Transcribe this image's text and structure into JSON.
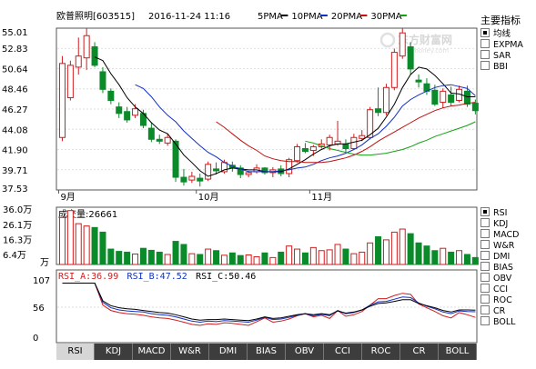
{
  "header": {
    "stock": "欧普照明[603515]",
    "datetime": "2016-11-24 11:16",
    "legend": [
      {
        "label": "5PMA",
        "color": "#000000"
      },
      {
        "label": "10PMA",
        "color": "#1030c0"
      },
      {
        "label": "20PMA",
        "color": "#c01010"
      },
      {
        "label": "30PMA",
        "color": "#16a016"
      }
    ]
  },
  "watermark": {
    "cn": "东方财富网",
    "en": "eastmoney.com"
  },
  "colors": {
    "up": "#d21c1c",
    "down": "#0b8a2a",
    "ma5": "#000000",
    "ma10": "#1030c0",
    "ma20": "#c01010",
    "ma30": "#16a016"
  },
  "main_indicators": {
    "title": "主要指标",
    "items": [
      {
        "label": "均线",
        "checked": true
      },
      {
        "label": "EXPMA",
        "checked": false
      },
      {
        "label": "SAR",
        "checked": false
      },
      {
        "label": "BBI",
        "checked": false
      }
    ]
  },
  "sub_indicators": {
    "items": [
      {
        "label": "RSI",
        "checked": true
      },
      {
        "label": "KDJ",
        "checked": false
      },
      {
        "label": "MACD",
        "checked": false
      },
      {
        "label": "W&R",
        "checked": false
      },
      {
        "label": "DMI",
        "checked": false
      },
      {
        "label": "BIAS",
        "checked": false
      },
      {
        "label": "OBV",
        "checked": false
      },
      {
        "label": "CCI",
        "checked": false
      },
      {
        "label": "ROC",
        "checked": false
      },
      {
        "label": "CR",
        "checked": false
      },
      {
        "label": "BOLL",
        "checked": false
      }
    ]
  },
  "tabs": [
    {
      "label": "RSI",
      "active": true
    },
    {
      "label": "KDJ",
      "active": false
    },
    {
      "label": "MACD",
      "active": false
    },
    {
      "label": "W&R",
      "active": false
    },
    {
      "label": "DMI",
      "active": false
    },
    {
      "label": "BIAS",
      "active": false
    },
    {
      "label": "OBV",
      "active": false
    },
    {
      "label": "CCI",
      "active": false
    },
    {
      "label": "ROC",
      "active": false
    },
    {
      "label": "CR",
      "active": false
    },
    {
      "label": "BOLL",
      "active": false
    }
  ],
  "chart_data": [
    {
      "type": "candlestick",
      "yticks": [
        "55.01",
        "52.83",
        "50.64",
        "48.46",
        "46.27",
        "44.08",
        "41.90",
        "39.71",
        "37.53"
      ],
      "ylim": [
        37.53,
        55.01
      ],
      "xtick_labels": [
        {
          "label": "9月",
          "index": 0
        },
        {
          "label": "10月",
          "index": 17
        },
        {
          "label": "11月",
          "index": 31
        }
      ],
      "candles": [
        {
          "o": 43.2,
          "h": 52.0,
          "l": 42.8,
          "c": 51.2
        },
        {
          "o": 47.5,
          "h": 51.5,
          "l": 47.2,
          "c": 51.0
        },
        {
          "o": 50.8,
          "h": 54.0,
          "l": 50.0,
          "c": 52.0
        },
        {
          "o": 51.8,
          "h": 55.0,
          "l": 50.5,
          "c": 54.2
        },
        {
          "o": 53.0,
          "h": 53.5,
          "l": 50.8,
          "c": 51.0
        },
        {
          "o": 50.3,
          "h": 50.8,
          "l": 48.0,
          "c": 48.4
        },
        {
          "o": 48.2,
          "h": 48.5,
          "l": 46.8,
          "c": 47.2
        },
        {
          "o": 46.5,
          "h": 47.0,
          "l": 45.3,
          "c": 45.8
        },
        {
          "o": 46.0,
          "h": 46.5,
          "l": 44.8,
          "c": 45.1
        },
        {
          "o": 45.6,
          "h": 46.8,
          "l": 45.3,
          "c": 46.3
        },
        {
          "o": 45.8,
          "h": 46.2,
          "l": 44.2,
          "c": 44.5
        },
        {
          "o": 44.2,
          "h": 44.8,
          "l": 42.7,
          "c": 43.0
        },
        {
          "o": 43.0,
          "h": 43.5,
          "l": 42.5,
          "c": 42.8
        },
        {
          "o": 42.6,
          "h": 43.6,
          "l": 42.3,
          "c": 43.2
        },
        {
          "o": 42.8,
          "h": 43.0,
          "l": 38.4,
          "c": 38.9
        },
        {
          "o": 38.9,
          "h": 39.8,
          "l": 38.0,
          "c": 38.4
        },
        {
          "o": 38.6,
          "h": 39.5,
          "l": 38.3,
          "c": 39.0
        },
        {
          "o": 38.8,
          "h": 39.3,
          "l": 37.9,
          "c": 38.5
        },
        {
          "o": 38.7,
          "h": 40.6,
          "l": 38.5,
          "c": 40.3
        },
        {
          "o": 39.8,
          "h": 40.5,
          "l": 39.2,
          "c": 39.6
        },
        {
          "o": 39.5,
          "h": 40.8,
          "l": 39.3,
          "c": 40.5
        },
        {
          "o": 40.2,
          "h": 40.6,
          "l": 39.5,
          "c": 39.9
        },
        {
          "o": 39.9,
          "h": 40.2,
          "l": 38.8,
          "c": 39.2
        },
        {
          "o": 39.2,
          "h": 39.6,
          "l": 38.9,
          "c": 39.4
        },
        {
          "o": 39.5,
          "h": 40.3,
          "l": 39.3,
          "c": 39.9
        },
        {
          "o": 39.9,
          "h": 40.0,
          "l": 39.2,
          "c": 39.4
        },
        {
          "o": 39.4,
          "h": 40.0,
          "l": 38.9,
          "c": 39.7
        },
        {
          "o": 39.8,
          "h": 40.2,
          "l": 39.0,
          "c": 39.3
        },
        {
          "o": 39.3,
          "h": 41.0,
          "l": 38.9,
          "c": 40.8
        },
        {
          "o": 40.7,
          "h": 42.5,
          "l": 40.5,
          "c": 42.2
        },
        {
          "o": 42.0,
          "h": 42.6,
          "l": 41.5,
          "c": 41.7
        },
        {
          "o": 41.8,
          "h": 42.4,
          "l": 41.2,
          "c": 42.2
        },
        {
          "o": 42.2,
          "h": 43.0,
          "l": 42.0,
          "c": 42.5
        },
        {
          "o": 42.4,
          "h": 43.5,
          "l": 41.8,
          "c": 43.2
        },
        {
          "o": 42.5,
          "h": 45.0,
          "l": 42.3,
          "c": 42.8
        },
        {
          "o": 42.5,
          "h": 43.0,
          "l": 41.5,
          "c": 42.0
        },
        {
          "o": 42.0,
          "h": 43.6,
          "l": 41.9,
          "c": 43.2
        },
        {
          "o": 43.1,
          "h": 44.0,
          "l": 42.8,
          "c": 43.4
        },
        {
          "o": 43.2,
          "h": 46.5,
          "l": 43.0,
          "c": 46.2
        },
        {
          "o": 46.3,
          "h": 48.6,
          "l": 45.5,
          "c": 45.9
        },
        {
          "o": 45.9,
          "h": 49.0,
          "l": 45.6,
          "c": 48.6
        },
        {
          "o": 48.6,
          "h": 52.8,
          "l": 48.3,
          "c": 52.4
        },
        {
          "o": 52.0,
          "h": 55.0,
          "l": 51.7,
          "c": 54.5
        },
        {
          "o": 53.0,
          "h": 53.5,
          "l": 50.0,
          "c": 50.6
        },
        {
          "o": 49.4,
          "h": 50.0,
          "l": 48.6,
          "c": 49.2
        },
        {
          "o": 49.0,
          "h": 49.6,
          "l": 47.8,
          "c": 48.2
        },
        {
          "o": 48.3,
          "h": 48.9,
          "l": 46.6,
          "c": 46.8
        },
        {
          "o": 47.0,
          "h": 48.5,
          "l": 46.4,
          "c": 48.2
        },
        {
          "o": 47.8,
          "h": 48.7,
          "l": 46.6,
          "c": 47.0
        },
        {
          "o": 47.2,
          "h": 48.8,
          "l": 47.0,
          "c": 48.4
        },
        {
          "o": 48.2,
          "h": 48.8,
          "l": 46.5,
          "c": 46.8
        },
        {
          "o": 46.9,
          "h": 47.3,
          "l": 45.7,
          "c": 46.1
        }
      ],
      "series": [
        {
          "name": "5PMA",
          "values": [
            null,
            null,
            null,
            null,
            51.9,
            51.5,
            50.1,
            48.9,
            47.5,
            46.5,
            45.8,
            44.8,
            44.0,
            43.6,
            42.5,
            41.3,
            40.5,
            39.6,
            39.0,
            39.3,
            39.7,
            39.9,
            39.8,
            39.7,
            39.7,
            39.5,
            39.5,
            39.5,
            39.8,
            40.3,
            40.8,
            41.4,
            41.9,
            42.3,
            42.5,
            42.5,
            42.7,
            42.9,
            43.5,
            44.2,
            45.4,
            46.8,
            48.6,
            50.0,
            50.8,
            50.6,
            49.9,
            49.0,
            48.0,
            47.9,
            47.6,
            47.6
          ]
        },
        {
          "name": "10PMA",
          "values": [
            null,
            null,
            null,
            null,
            null,
            null,
            null,
            null,
            null,
            48.9,
            48.5,
            47.6,
            46.5,
            45.6,
            44.9,
            43.9,
            43.1,
            42.3,
            41.6,
            41.1,
            40.5,
            40.1,
            39.8,
            39.5,
            39.5,
            39.5,
            39.5,
            39.6,
            39.7,
            39.9,
            40.0,
            40.3,
            40.7,
            41.0,
            41.2,
            41.5,
            41.9,
            42.4,
            43.1,
            43.6,
            44.4,
            45.4,
            46.6,
            47.3,
            47.8,
            48.2,
            48.6,
            48.8,
            48.9,
            48.7,
            48.5,
            47.7
          ]
        },
        {
          "name": "20PMA",
          "values": [
            null,
            null,
            null,
            null,
            null,
            null,
            null,
            null,
            null,
            null,
            null,
            null,
            null,
            null,
            null,
            null,
            null,
            null,
            null,
            44.9,
            44.3,
            43.6,
            42.9,
            42.3,
            41.8,
            41.2,
            40.9,
            40.7,
            40.6,
            40.6,
            40.5,
            40.5,
            40.5,
            40.6,
            40.8,
            41.0,
            41.3,
            41.7,
            42.2,
            42.8,
            43.3,
            43.8,
            44.3,
            44.8,
            45.3,
            45.7,
            46.1,
            46.4,
            46.6,
            46.7,
            46.9,
            47.0
          ]
        },
        {
          "name": "30PMA",
          "values": [
            null,
            null,
            null,
            null,
            null,
            null,
            null,
            null,
            null,
            null,
            null,
            null,
            null,
            null,
            null,
            null,
            null,
            null,
            null,
            null,
            null,
            null,
            null,
            null,
            null,
            null,
            null,
            null,
            null,
            null,
            42.8,
            42.6,
            42.3,
            42.0,
            41.8,
            41.6,
            41.4,
            41.3,
            41.3,
            41.4,
            41.5,
            41.7,
            41.9,
            42.2,
            42.6,
            42.9,
            43.3,
            43.6,
            43.9,
            44.2,
            44.5,
            44.9
          ]
        }
      ]
    },
    {
      "type": "bar",
      "title": "成交量:26661",
      "yticks": [
        "36.0万",
        "26.1万",
        "16.3万",
        "6.4万",
        "万"
      ],
      "ylim": [
        0,
        36.0
      ],
      "unit": "万",
      "values": [
        30.5,
        35.0,
        26.5,
        25.0,
        24.0,
        21.0,
        10.0,
        8.5,
        8.0,
        6.8,
        10.5,
        9.2,
        8.0,
        6.5,
        15.0,
        13.0,
        7.0,
        6.5,
        10.0,
        9.0,
        6.0,
        7.5,
        5.8,
        6.2,
        5.0,
        7.5,
        4.5,
        8.0,
        12.0,
        10.0,
        7.5,
        11.0,
        9.0,
        9.5,
        13.0,
        10.0,
        7.0,
        8.0,
        14.0,
        18.0,
        16.0,
        21.0,
        23.0,
        20.0,
        14.0,
        12.0,
        9.0,
        10.5,
        8.0,
        9.0,
        6.5,
        4.5
      ]
    },
    {
      "type": "line",
      "yticks": [
        "107",
        "56",
        "0"
      ],
      "ylim": [
        0,
        107
      ],
      "series": [
        {
          "name": "RSI_A",
          "label": "RSI_A:36.99",
          "color": "#d21c1c",
          "values": [
            101,
            101,
            101,
            101,
            101,
            60,
            50,
            46,
            44,
            43,
            41,
            38,
            36,
            35,
            32,
            28,
            24,
            22,
            25,
            24,
            27,
            26,
            24,
            22,
            29,
            36,
            28,
            30,
            34,
            40,
            44,
            38,
            41,
            35,
            50,
            39,
            42,
            48,
            60,
            72,
            72,
            78,
            82,
            80,
            62,
            55,
            48,
            40,
            36,
            46,
            42,
            37
          ]
        },
        {
          "name": "RSI_B",
          "label": "RSI_B:47.52",
          "color": "#1030c0",
          "values": [
            101,
            101,
            101,
            101,
            101,
            65,
            55,
            51,
            49,
            48,
            47,
            44,
            42,
            41,
            38,
            34,
            30,
            28,
            30,
            29,
            31,
            30,
            29,
            28,
            32,
            37,
            33,
            34,
            37,
            41,
            44,
            40,
            43,
            40,
            50,
            44,
            46,
            51,
            60,
            66,
            67,
            71,
            75,
            74,
            64,
            58,
            53,
            47,
            44,
            49,
            48,
            47.5
          ]
        },
        {
          "name": "RSI_C",
          "label": "RSI_C:50.46",
          "color": "#000000",
          "values": [
            101,
            101,
            101,
            101,
            101,
            68,
            59,
            55,
            53,
            52,
            50,
            48,
            46,
            45,
            42,
            38,
            34,
            32,
            33,
            33,
            34,
            33,
            32,
            31,
            34,
            38,
            35,
            36,
            39,
            42,
            44,
            42,
            44,
            42,
            49,
            45,
            47,
            51,
            58,
            63,
            64,
            67,
            70,
            70,
            63,
            59,
            55,
            50,
            47,
            51,
            51,
            50.5
          ]
        }
      ]
    }
  ]
}
